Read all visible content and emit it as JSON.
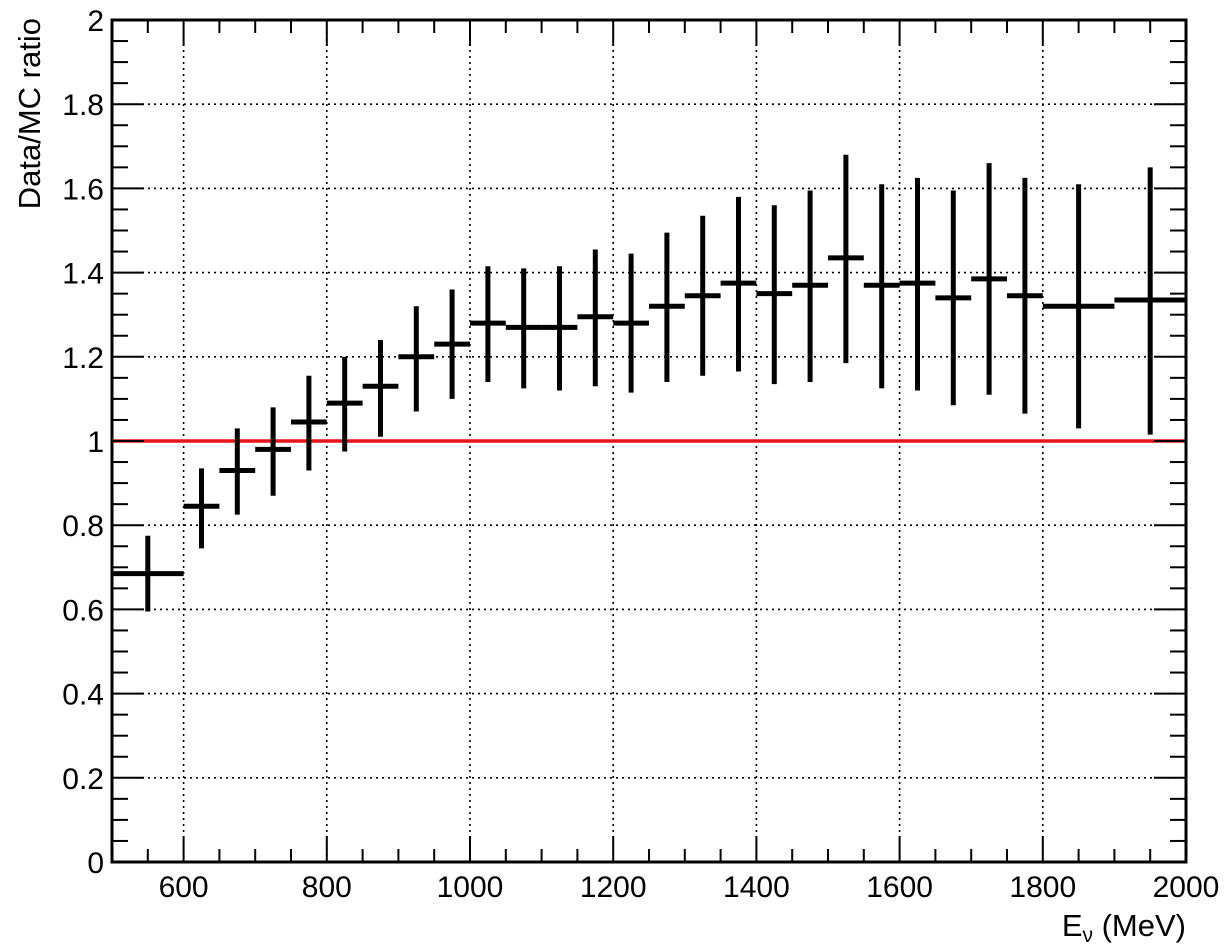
{
  "chart_data": {
    "type": "scatter",
    "title": "",
    "xlabel": "E",
    "xlabel_sub": "ν",
    "xlabel_unit": " (MeV)",
    "ylabel": "Data/MC ratio",
    "xlim": [
      500,
      2000
    ],
    "ylim": [
      0,
      2
    ],
    "grid": true,
    "x_ticks": [
      600,
      800,
      1000,
      1200,
      1400,
      1600,
      1800,
      2000
    ],
    "y_ticks": [
      0,
      0.2,
      0.4,
      0.6,
      0.8,
      1,
      1.2,
      1.4,
      1.6,
      1.8,
      2
    ],
    "y_tick_labels": [
      "0",
      "0.2",
      "0.4",
      "0.6",
      "0.8",
      "1",
      "1.2",
      "1.4",
      "1.6",
      "1.8",
      "2"
    ],
    "reference_line": {
      "y": 1,
      "color": "#e8141c"
    },
    "marker_color": "#000000",
    "points": [
      {
        "x_low": 500,
        "x_high": 600,
        "y": 0.685,
        "y_low": 0.595,
        "y_high": 0.775
      },
      {
        "x_low": 600,
        "x_high": 650,
        "y": 0.845,
        "y_low": 0.745,
        "y_high": 0.935
      },
      {
        "x_low": 650,
        "x_high": 700,
        "y": 0.93,
        "y_low": 0.825,
        "y_high": 1.03
      },
      {
        "x_low": 700,
        "x_high": 750,
        "y": 0.98,
        "y_low": 0.87,
        "y_high": 1.08
      },
      {
        "x_low": 750,
        "x_high": 800,
        "y": 1.045,
        "y_low": 0.93,
        "y_high": 1.155
      },
      {
        "x_low": 800,
        "x_high": 850,
        "y": 1.09,
        "y_low": 0.975,
        "y_high": 1.2
      },
      {
        "x_low": 850,
        "x_high": 900,
        "y": 1.13,
        "y_low": 1.01,
        "y_high": 1.24
      },
      {
        "x_low": 900,
        "x_high": 950,
        "y": 1.2,
        "y_low": 1.07,
        "y_high": 1.32
      },
      {
        "x_low": 950,
        "x_high": 1000,
        "y": 1.23,
        "y_low": 1.1,
        "y_high": 1.36
      },
      {
        "x_low": 1000,
        "x_high": 1050,
        "y": 1.28,
        "y_low": 1.14,
        "y_high": 1.415
      },
      {
        "x_low": 1050,
        "x_high": 1100,
        "y": 1.27,
        "y_low": 1.125,
        "y_high": 1.41
      },
      {
        "x_low": 1100,
        "x_high": 1150,
        "y": 1.27,
        "y_low": 1.12,
        "y_high": 1.415
      },
      {
        "x_low": 1150,
        "x_high": 1200,
        "y": 1.295,
        "y_low": 1.13,
        "y_high": 1.455
      },
      {
        "x_low": 1200,
        "x_high": 1250,
        "y": 1.28,
        "y_low": 1.115,
        "y_high": 1.445
      },
      {
        "x_low": 1250,
        "x_high": 1300,
        "y": 1.32,
        "y_low": 1.14,
        "y_high": 1.495
      },
      {
        "x_low": 1300,
        "x_high": 1350,
        "y": 1.345,
        "y_low": 1.155,
        "y_high": 1.535
      },
      {
        "x_low": 1350,
        "x_high": 1400,
        "y": 1.375,
        "y_low": 1.165,
        "y_high": 1.58
      },
      {
        "x_low": 1400,
        "x_high": 1450,
        "y": 1.35,
        "y_low": 1.135,
        "y_high": 1.56
      },
      {
        "x_low": 1450,
        "x_high": 1500,
        "y": 1.37,
        "y_low": 1.14,
        "y_high": 1.595
      },
      {
        "x_low": 1500,
        "x_high": 1550,
        "y": 1.435,
        "y_low": 1.185,
        "y_high": 1.68
      },
      {
        "x_low": 1550,
        "x_high": 1600,
        "y": 1.37,
        "y_low": 1.125,
        "y_high": 1.61
      },
      {
        "x_low": 1600,
        "x_high": 1650,
        "y": 1.375,
        "y_low": 1.12,
        "y_high": 1.625
      },
      {
        "x_low": 1650,
        "x_high": 1700,
        "y": 1.34,
        "y_low": 1.085,
        "y_high": 1.595
      },
      {
        "x_low": 1700,
        "x_high": 1750,
        "y": 1.385,
        "y_low": 1.11,
        "y_high": 1.66
      },
      {
        "x_low": 1750,
        "x_high": 1800,
        "y": 1.345,
        "y_low": 1.065,
        "y_high": 1.625
      },
      {
        "x_low": 1800,
        "x_high": 1900,
        "y": 1.32,
        "y_low": 1.03,
        "y_high": 1.61
      },
      {
        "x_low": 1900,
        "x_high": 2000,
        "y": 1.335,
        "y_low": 1.015,
        "y_high": 1.65
      }
    ]
  }
}
